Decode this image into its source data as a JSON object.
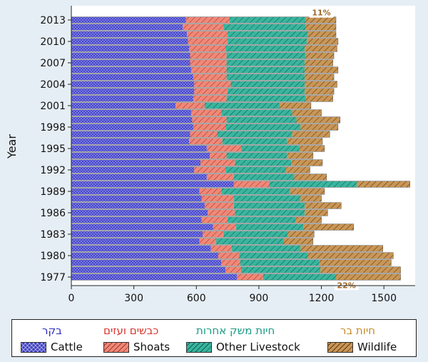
{
  "chart_data": {
    "type": "bar",
    "orientation": "horizontal",
    "stacked": true,
    "ylabel": "Year",
    "xlabel": "",
    "xlim": [
      0,
      1650
    ],
    "xticks": [
      0,
      300,
      600,
      900,
      1200,
      1500
    ],
    "years": [
      1977,
      1978,
      1979,
      1980,
      1981,
      1982,
      1983,
      1984,
      1985,
      1986,
      1987,
      1988,
      1989,
      1990,
      1991,
      1992,
      1993,
      1994,
      1995,
      1996,
      1997,
      1998,
      1999,
      2000,
      2001,
      2002,
      2003,
      2004,
      2005,
      2006,
      2007,
      2008,
      2009,
      2010,
      2011,
      2012,
      2013
    ],
    "ytick_labels": [
      "1977",
      "1980",
      "1983",
      "1986",
      "1989",
      "1992",
      "1995",
      "1998",
      "2001",
      "2004",
      "2007",
      "2010",
      "2013"
    ],
    "series": [
      {
        "name": "Cattle",
        "color": "#4040c8",
        "values": [
          795,
          740,
          720,
          705,
          670,
          615,
          630,
          680,
          625,
          655,
          640,
          625,
          615,
          780,
          650,
          590,
          620,
          665,
          650,
          565,
          570,
          585,
          580,
          575,
          500,
          585,
          590,
          590,
          585,
          575,
          570,
          570,
          565,
          560,
          555,
          535,
          550
        ]
      },
      {
        "name": "Shoats",
        "color": "#f08878",
        "values": [
          125,
          75,
          90,
          100,
          100,
          80,
          100,
          110,
          125,
          130,
          140,
          155,
          105,
          170,
          130,
          150,
          165,
          80,
          165,
          160,
          130,
          155,
          165,
          145,
          140,
          160,
          160,
          175,
          160,
          170,
          175,
          175,
          175,
          190,
          195,
          195,
          210
        ]
      },
      {
        "name": "Other Livestock",
        "color": "#3ab59e",
        "values": [
          350,
          380,
          380,
          330,
          330,
          325,
          310,
          325,
          325,
          335,
          340,
          320,
          330,
          420,
          290,
          290,
          270,
          290,
          280,
          310,
          360,
          360,
          335,
          340,
          360,
          380,
          370,
          355,
          375,
          375,
          375,
          380,
          380,
          380,
          385,
          395,
          365
        ]
      },
      {
        "name": "Wildlife",
        "color": "#c99656",
        "values": [
          310,
          385,
          345,
          410,
          395,
          140,
          125,
          240,
          125,
          110,
          175,
          100,
          165,
          255,
          155,
          115,
          150,
          125,
          120,
          170,
          180,
          180,
          210,
          140,
          150,
          130,
          140,
          155,
          140,
          160,
          135,
          135,
          155,
          150,
          135,
          145,
          145
        ]
      }
    ],
    "annotations": [
      {
        "text": "11%",
        "year": 2013,
        "x": 1200,
        "position": "above"
      },
      {
        "text": "22%",
        "year": 1977,
        "x": 1320,
        "position": "below"
      }
    ]
  },
  "legend": {
    "items": [
      {
        "hebrew": "בקר",
        "english": "Cattle",
        "heb_color": "#2b2bc0"
      },
      {
        "hebrew": "כבשים ועזים",
        "english": "Shoats",
        "heb_color": "#d9342b"
      },
      {
        "hebrew": "חיות משק אחרות",
        "english": "Other Livestock",
        "heb_color": "#1a9a85"
      },
      {
        "hebrew": "חיות בר",
        "english": "Wildlife",
        "heb_color": "#c98a2a"
      }
    ]
  }
}
